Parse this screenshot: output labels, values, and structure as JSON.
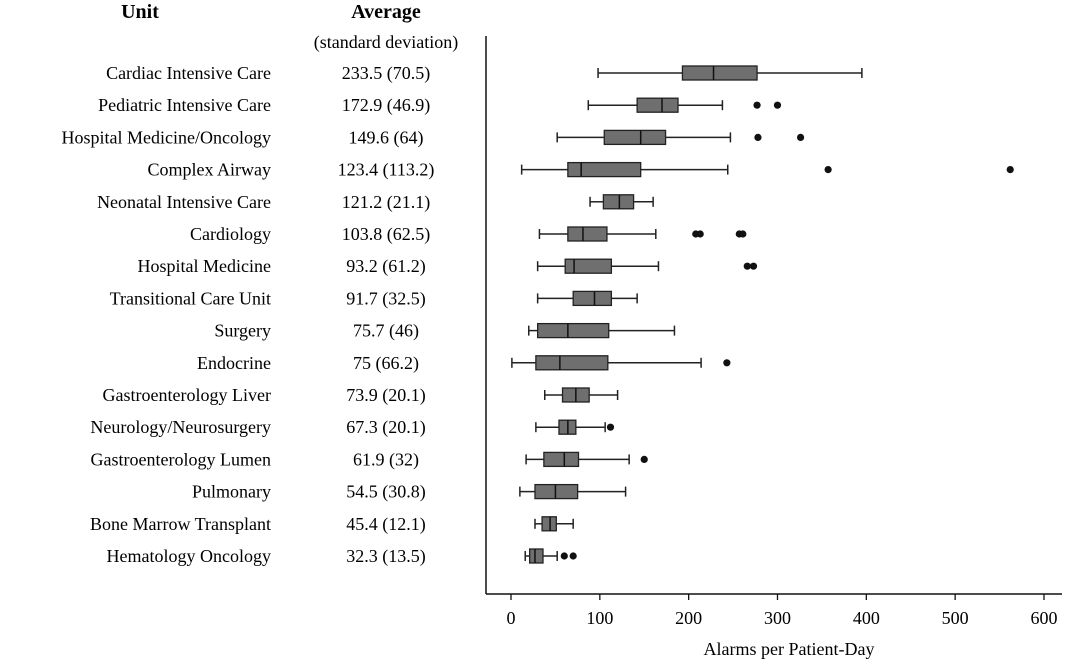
{
  "chart_data": {
    "type": "box",
    "header_unit": "Unit",
    "header_avg": "Average",
    "header_avg_sub": "(standard deviation)",
    "xlabel": "Alarms per Patient-Day",
    "xlim": [
      -20,
      620
    ],
    "xticks": [
      "0",
      "100",
      "200",
      "300",
      "400",
      "500",
      "600"
    ],
    "xtick_values": [
      0,
      100,
      200,
      300,
      400,
      500,
      600
    ],
    "box_color": "#6f6f6f",
    "rows": [
      {
        "unit": "Cardiac Intensive Care",
        "avg": "233.5 (70.5)",
        "min": 98,
        "q1": 193,
        "median": 228,
        "q3": 277,
        "max": 395,
        "outliers": []
      },
      {
        "unit": "Pediatric Intensive Care",
        "avg": "172.9 (46.9)",
        "min": 87,
        "q1": 142,
        "median": 170,
        "q3": 188,
        "max": 238,
        "outliers": [
          277,
          300
        ]
      },
      {
        "unit": "Hospital Medicine/Oncology",
        "avg": "149.6 (64)",
        "min": 52,
        "q1": 105,
        "median": 146,
        "q3": 174,
        "max": 247,
        "outliers": [
          278,
          326
        ]
      },
      {
        "unit": "Complex Airway",
        "avg": "123.4 (113.2)",
        "min": 12,
        "q1": 64,
        "median": 79,
        "q3": 146,
        "max": 244,
        "outliers": [
          357,
          562
        ]
      },
      {
        "unit": "Neonatal Intensive Care",
        "avg": "121.2 (21.1)",
        "min": 89,
        "q1": 104,
        "median": 122,
        "q3": 138,
        "max": 160,
        "outliers": []
      },
      {
        "unit": "Cardiology",
        "avg": "103.8 (62.5)",
        "min": 32,
        "q1": 64,
        "median": 81,
        "q3": 108,
        "max": 163,
        "outliers": [
          208,
          213,
          257,
          261
        ]
      },
      {
        "unit": "Hospital Medicine",
        "avg": "93.2 (61.2)",
        "min": 30,
        "q1": 61,
        "median": 71,
        "q3": 113,
        "max": 166,
        "outliers": [
          266,
          273
        ]
      },
      {
        "unit": "Transitional Care Unit",
        "avg": "91.7 (32.5)",
        "min": 30,
        "q1": 70,
        "median": 94,
        "q3": 113,
        "max": 142,
        "outliers": []
      },
      {
        "unit": "Surgery",
        "avg": "75.7 (46)",
        "min": 20,
        "q1": 30,
        "median": 64,
        "q3": 110,
        "max": 184,
        "outliers": []
      },
      {
        "unit": "Endocrine",
        "avg": "75 (66.2)",
        "min": 1,
        "q1": 28,
        "median": 55,
        "q3": 109,
        "max": 214,
        "outliers": [
          243
        ]
      },
      {
        "unit": "Gastroenterology Liver",
        "avg": "73.9 (20.1)",
        "min": 38,
        "q1": 58,
        "median": 73,
        "q3": 88,
        "max": 120,
        "outliers": []
      },
      {
        "unit": "Neurology/Neurosurgery",
        "avg": "67.3 (20.1)",
        "min": 28,
        "q1": 54,
        "median": 64,
        "q3": 73,
        "max": 106,
        "outliers": [
          112
        ]
      },
      {
        "unit": "Gastroenterology Lumen",
        "avg": "61.9 (32)",
        "min": 17,
        "q1": 37,
        "median": 60,
        "q3": 76,
        "max": 133,
        "outliers": [
          150
        ]
      },
      {
        "unit": "Pulmonary",
        "avg": "54.5 (30.8)",
        "min": 10,
        "q1": 27,
        "median": 50,
        "q3": 75,
        "max": 129,
        "outliers": []
      },
      {
        "unit": "Bone Marrow Transplant",
        "avg": "45.4 (12.1)",
        "min": 27,
        "q1": 35,
        "median": 44,
        "q3": 51,
        "max": 70,
        "outliers": []
      },
      {
        "unit": "Hematology Oncology",
        "avg": "32.3 (13.5)",
        "min": 16,
        "q1": 21,
        "median": 27,
        "q3": 36,
        "max": 52,
        "outliers": [
          60,
          70
        ]
      }
    ]
  }
}
